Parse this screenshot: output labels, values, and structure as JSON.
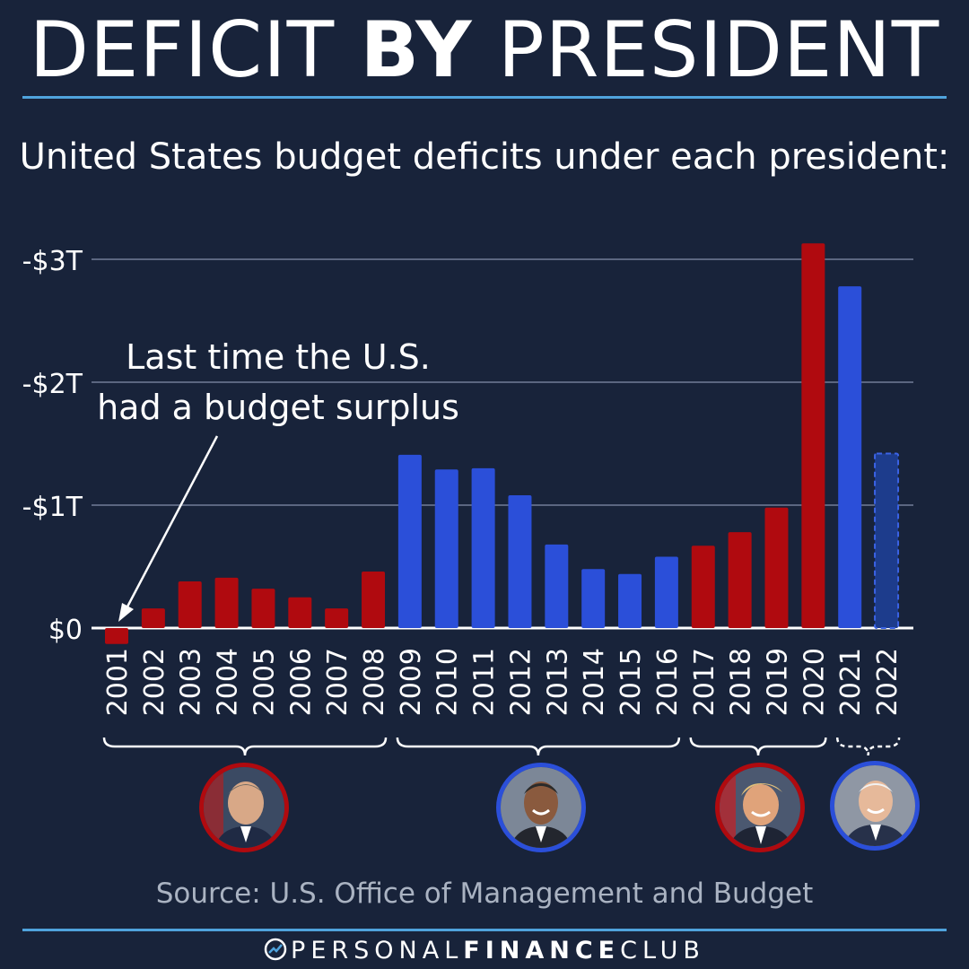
{
  "header": {
    "title_part1": "DEFICIT ",
    "title_part2": "BY",
    "title_part3": " PRESIDENT",
    "subtitle": "United States budget deficits under each president:"
  },
  "annotation": {
    "line1": "Last time the U.S.",
    "line2": "had a budget surplus"
  },
  "source": "Source: U.S. Office of Management and Budget",
  "footer": {
    "brand_part1": "PERSONAL",
    "brand_part2": "FINANCE",
    "brand_part3": "CLUB"
  },
  "colors": {
    "background": "#18233a",
    "republican": "#b00a0f",
    "democrat": "#2b4fd9",
    "accent_rule": "#4fa3dc"
  },
  "presidents": [
    {
      "party": "republican",
      "icon": "president-portrait-icon"
    },
    {
      "party": "democrat",
      "icon": "president-portrait-icon"
    },
    {
      "party": "republican",
      "icon": "president-portrait-icon"
    },
    {
      "party": "democrat",
      "icon": "president-portrait-icon"
    }
  ],
  "chart_data": {
    "type": "bar",
    "title": "United States budget deficits under each president:",
    "ylabel": "",
    "xlabel": "",
    "ylim": [
      -3,
      0
    ],
    "y_ticks": [
      {
        "value": -3,
        "label": "-$3T"
      },
      {
        "value": -2,
        "label": "-$2T"
      },
      {
        "value": -1,
        "label": "-$1T"
      },
      {
        "value": 0,
        "label": "$0"
      }
    ],
    "grid": true,
    "categories": [
      "2001",
      "2002",
      "2003",
      "2004",
      "2005",
      "2006",
      "2007",
      "2008",
      "2009",
      "2010",
      "2011",
      "2012",
      "2013",
      "2014",
      "2015",
      "2016",
      "2017",
      "2018",
      "2019",
      "2020",
      "2021",
      "2022"
    ],
    "values": [
      0.13,
      -0.16,
      -0.38,
      -0.41,
      -0.32,
      -0.25,
      -0.16,
      -0.46,
      -1.41,
      -1.29,
      -1.3,
      -1.08,
      -0.68,
      -0.48,
      -0.44,
      -0.58,
      -0.67,
      -0.78,
      -0.98,
      -3.13,
      -2.78,
      -1.42
    ],
    "bar_colors": [
      "republican",
      "republican",
      "republican",
      "republican",
      "republican",
      "republican",
      "republican",
      "republican",
      "democrat",
      "democrat",
      "democrat",
      "democrat",
      "democrat",
      "democrat",
      "democrat",
      "democrat",
      "republican",
      "republican",
      "republican",
      "republican",
      "democrat",
      "democrat"
    ],
    "estimated": [
      false,
      false,
      false,
      false,
      false,
      false,
      false,
      false,
      false,
      false,
      false,
      false,
      false,
      false,
      false,
      false,
      false,
      false,
      false,
      false,
      false,
      true
    ],
    "president_groups": [
      {
        "start": 0,
        "end": 7,
        "party": "republican"
      },
      {
        "start": 8,
        "end": 15,
        "party": "democrat"
      },
      {
        "start": 16,
        "end": 19,
        "party": "republican"
      },
      {
        "start": 20,
        "end": 21,
        "party": "democrat"
      }
    ]
  }
}
